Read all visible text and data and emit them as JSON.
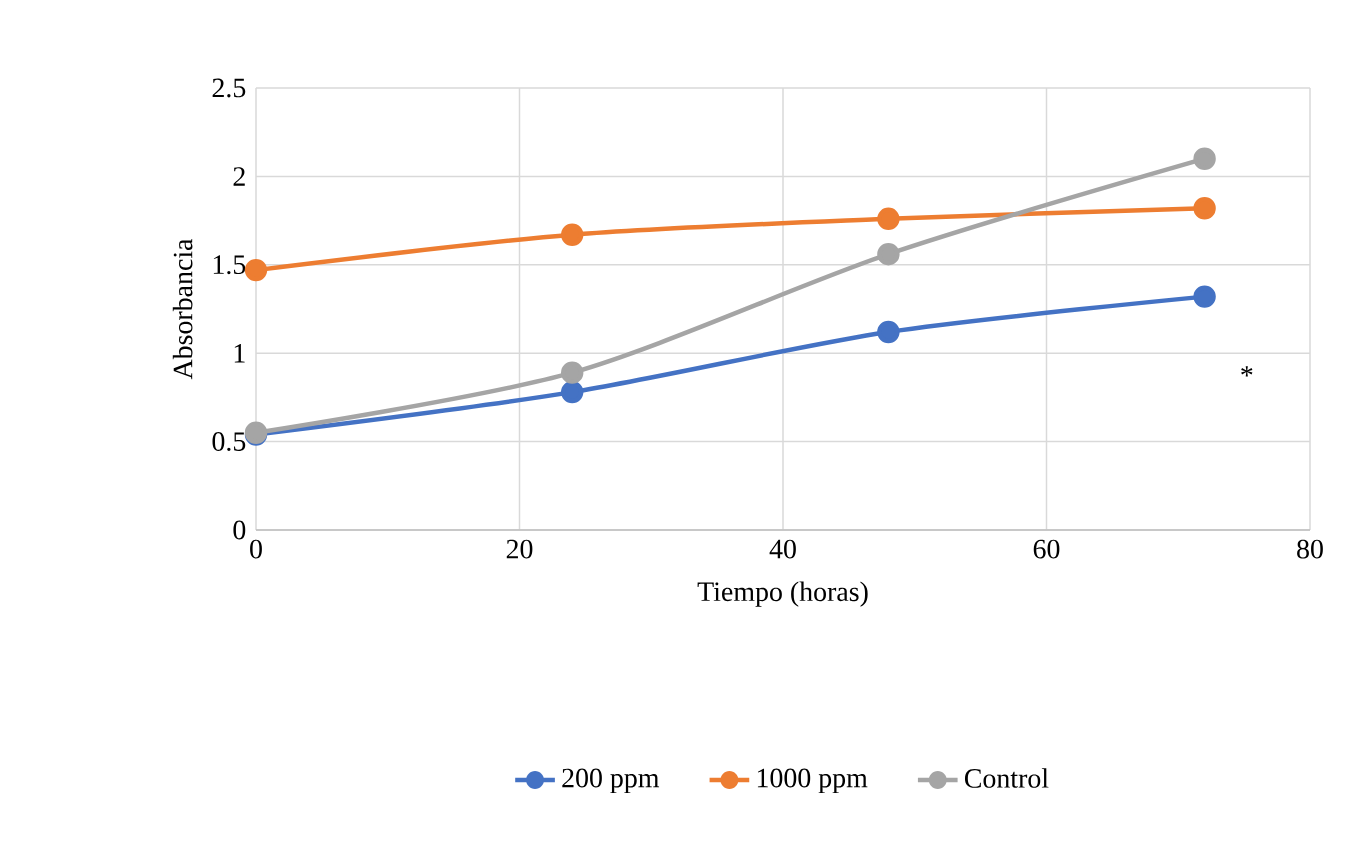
{
  "chart_data": {
    "type": "line",
    "xlabel": "Tiempo (horas)",
    "ylabel": "Absorbancia",
    "x": [
      0,
      24,
      48,
      72
    ],
    "series": [
      {
        "name": "200 ppm",
        "color": "#4472c4",
        "values": [
          0.54,
          0.78,
          1.12,
          1.32
        ]
      },
      {
        "name": "1000 ppm",
        "color": "#ed7d31",
        "values": [
          1.47,
          1.67,
          1.76,
          1.82
        ]
      },
      {
        "name": "Control",
        "color": "#a5a5a5",
        "values": [
          0.55,
          0.89,
          1.56,
          2.1
        ]
      }
    ],
    "xlim": [
      0,
      80
    ],
    "xticks": [
      0,
      20,
      40,
      60,
      80
    ],
    "ylim": [
      0,
      2.5
    ],
    "yticks": [
      0,
      0.5,
      1,
      1.5,
      2,
      2.5
    ],
    "annotations": [
      "*"
    ],
    "grid": true,
    "legend": "bottom",
    "marker": "circle",
    "line_style": "solid"
  }
}
